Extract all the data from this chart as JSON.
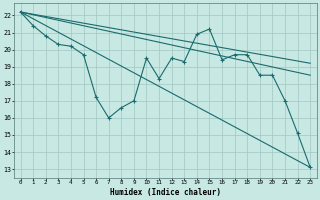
{
  "xlabel": "Humidex (Indice chaleur)",
  "xlim": [
    -0.5,
    23.5
  ],
  "ylim": [
    12.5,
    22.7
  ],
  "yticks": [
    13,
    14,
    15,
    16,
    17,
    18,
    19,
    20,
    21,
    22
  ],
  "xticks": [
    0,
    1,
    2,
    3,
    4,
    5,
    6,
    7,
    8,
    9,
    10,
    11,
    12,
    13,
    14,
    15,
    16,
    17,
    18,
    19,
    20,
    21,
    22,
    23
  ],
  "bg_color": "#c8e8e4",
  "grid_color": "#a0c8c4",
  "line_color": "#1a6b6b",
  "main_series_x": [
    0,
    1,
    2,
    3,
    4,
    5,
    6,
    7,
    8,
    9,
    10,
    11,
    12,
    13,
    14,
    15,
    16,
    17,
    18,
    19,
    20,
    21,
    22,
    23
  ],
  "main_series_y": [
    22.2,
    21.4,
    20.8,
    20.3,
    20.2,
    19.7,
    17.2,
    16.0,
    16.6,
    17.0,
    19.5,
    18.3,
    19.5,
    19.3,
    20.9,
    21.2,
    19.4,
    19.7,
    19.7,
    18.5,
    18.5,
    17.0,
    15.1,
    13.1
  ],
  "trend_lines": [
    {
      "x": [
        0,
        23
      ],
      "y": [
        22.2,
        13.1
      ]
    },
    {
      "x": [
        0,
        23
      ],
      "y": [
        22.2,
        18.5
      ]
    },
    {
      "x": [
        0,
        23
      ],
      "y": [
        22.2,
        19.2
      ]
    }
  ]
}
